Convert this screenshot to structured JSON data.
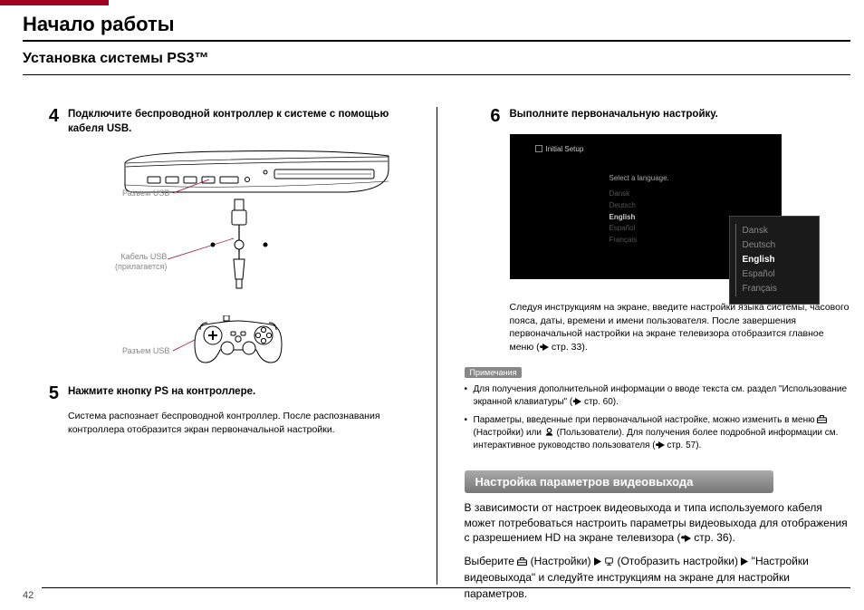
{
  "header": {
    "page_title": "Начало работы",
    "subtitle": "Установка системы PS3™",
    "page_number": "42"
  },
  "left": {
    "step4": {
      "num": "4",
      "heading": "Подключите беспроводной контроллер к системе с помощью кабеля USB.",
      "label_usb_top": "Разъем USB",
      "label_cable_l1": "Кабель USB",
      "label_cable_l2": "(прилагается)",
      "label_usb_bottom": "Разъем USB"
    },
    "step5": {
      "num": "5",
      "heading": "Нажмите кнопку PS на контроллере.",
      "body": "Система распознает беспроводной контроллер. После распознавания контроллера отобразится экран первоначальной настройки."
    }
  },
  "right": {
    "step6": {
      "num": "6",
      "heading": "Выполните первоначальную настройку.",
      "screen": {
        "title": "Initial Setup",
        "subtitle": "Select a language.",
        "bg_list": [
          "Dansk",
          "Deutsch",
          "English",
          "Español",
          "Français"
        ],
        "bg_selected": "English",
        "popup_list": [
          "Dansk",
          "Deutsch",
          "English",
          "Español",
          "Français"
        ],
        "popup_selected": "English"
      },
      "body": "Следуя инструкциям на экране, введите настройки языка системы, часового пояса, даты, времени и имени пользователя. После завершения первоначальной настройки на экране телевизора отобразится главное меню (",
      "body_ref": " стр. 33).",
      "note_label": "Примечания",
      "bullets": [
        {
          "t1": "Для получения дополнительной информации о вводе текста см. раздел \"Использование экранной клавиатуры\" (",
          "ref": " стр. 60)."
        },
        {
          "t1": "Параметры, введенные при первоначальной настройке, можно изменить в меню ",
          "mid1": " (Настройки) или ",
          "mid2": " (Пользователи). Для получения более подробной информации см. интерактивное руководство пользователя (",
          "ref": " стр. 57)."
        }
      ]
    },
    "section": {
      "title": "Настройка параметров видеовыхода",
      "body1_a": "В зависимости от настроек видеовыхода и типа используемого кабеля может потребоваться настроить параметры видеовыхода для отображения с разрешением HD на экране телевизора (",
      "body1_ref": " стр. 36).",
      "body2_a": "Выберите ",
      "body2_b": " (Настройки) ",
      "body2_c": " (Отобразить настройки) ",
      "body2_d": " \"Настройки видеовыхода\" и следуйте инструкциям на экране для настройки параметров."
    }
  },
  "colors": {
    "accent": "#a00020",
    "gray": "#888888"
  }
}
